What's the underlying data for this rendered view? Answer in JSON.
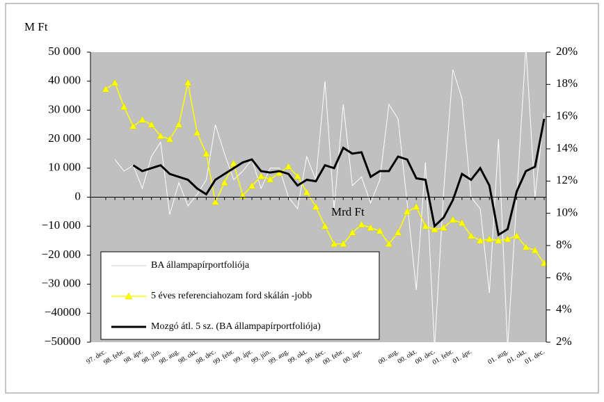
{
  "chart_data": {
    "type": "line",
    "y_label": "M Ft",
    "annotation": "Mrd Ft",
    "categories": [
      "97. dec.",
      null,
      "98. febr.",
      null,
      "98. ápr.",
      null,
      "98. jún.",
      null,
      "98. aug.",
      null,
      "98. okt.",
      null,
      "98. dec.",
      null,
      "99. febr.",
      null,
      "99. ápr.",
      null,
      "99. jún.",
      null,
      "99. aug.",
      null,
      "99. okt.",
      null,
      "99. dec.",
      null,
      "00. febr.",
      null,
      "00. ápr.",
      null,
      null,
      null,
      "00. aug.",
      null,
      "00. okt.",
      null,
      "00. dec.",
      null,
      "01. febr.",
      null,
      "01. ápr.",
      null,
      null,
      null,
      "01. aug.",
      null,
      "01. okt.",
      null,
      "01. dec."
    ],
    "ylim": [
      -50000,
      50000
    ],
    "yticks": [
      {
        "value": 50000,
        "label": "50 000"
      },
      {
        "value": 40000,
        "label": "40 000"
      },
      {
        "value": 30000,
        "label": "30 000"
      },
      {
        "value": 20000,
        "label": "20 000"
      },
      {
        "value": 10000,
        "label": "10 000"
      },
      0,
      {
        "value": -10000,
        "label": "−10 000"
      },
      {
        "value": -20000,
        "label": "−20 000"
      },
      {
        "value": -30000,
        "label": "−30 000"
      },
      {
        "value": -40000,
        "label": "−40000"
      },
      {
        "value": -50000,
        "label": "−50000"
      }
    ],
    "y2lim": [
      2,
      20
    ],
    "y2ticks": [
      {
        "value": 20,
        "label": "20%"
      },
      {
        "value": 18,
        "label": "18%"
      },
      {
        "value": 16,
        "label": "16%"
      },
      {
        "value": 14,
        "label": "14%"
      },
      {
        "value": 12,
        "label": "12%"
      },
      {
        "value": 10,
        "label": "10%"
      },
      {
        "value": 8,
        "label": "8%"
      },
      {
        "value": 6,
        "label": "6%"
      },
      {
        "value": 4,
        "label": "4%"
      },
      {
        "value": 2,
        "label": "2%"
      }
    ],
    "grid": false,
    "legend": "bottom-left",
    "series": [
      {
        "name": "BA állampapírportfoliója",
        "color": "#ffffff",
        "axis": "y",
        "values": [
          null,
          13000,
          9000,
          11000,
          3000,
          14000,
          19000,
          -6000,
          5000,
          -3000,
          1000,
          6000,
          25000,
          15000,
          6000,
          9000,
          13000,
          3000,
          10000,
          10000,
          0,
          -4000,
          14000,
          6000,
          40000,
          -4000,
          32000,
          4000,
          7000,
          -2000,
          6000,
          32000,
          27000,
          -2000,
          -32000,
          12000,
          -52000,
          2000,
          44000,
          34000,
          0,
          -4000,
          -33000,
          20000,
          -52000,
          0,
          52000,
          0,
          29000
        ]
      },
      {
        "name": "5 éves referenciahozam ford skálán -jobb",
        "color": "#ffff00",
        "axis": "y2",
        "marker": "triangle",
        "values": [
          17.7,
          18.1,
          16.6,
          15.4,
          15.8,
          15.5,
          14.8,
          14.6,
          15.5,
          18.1,
          15.0,
          13.7,
          10.7,
          11.9,
          13.1,
          11.1,
          11.7,
          12.3,
          12.1,
          12.5,
          12.9,
          12.3,
          11.3,
          10.4,
          9.2,
          8.1,
          8.1,
          8.8,
          9.3,
          9.1,
          8.9,
          8.1,
          8.8,
          10.1,
          10.4,
          9.2,
          9.0,
          9.1,
          9.6,
          9.4,
          8.6,
          8.3,
          8.4,
          8.3,
          8.4,
          8.6,
          7.9,
          7.7,
          6.9
        ]
      },
      {
        "name": "Mozgó átl. 5 sz. (BA állampapírportfoliója)",
        "color": "#000000",
        "axis": "y",
        "values": [
          null,
          null,
          null,
          11000,
          9000,
          10000,
          11000,
          8000,
          7000,
          6000,
          3000,
          1000,
          6000,
          8000,
          10000,
          12000,
          13000,
          9000,
          8500,
          9000,
          8000,
          4000,
          6000,
          5500,
          11000,
          10000,
          17000,
          15000,
          15500,
          7000,
          9000,
          9000,
          14000,
          13000,
          6500,
          6000,
          -10000,
          -7000,
          -1000,
          8000,
          6000,
          10000,
          4000,
          -13000,
          -11000,
          2000,
          9000,
          10500,
          27000
        ]
      }
    ]
  }
}
